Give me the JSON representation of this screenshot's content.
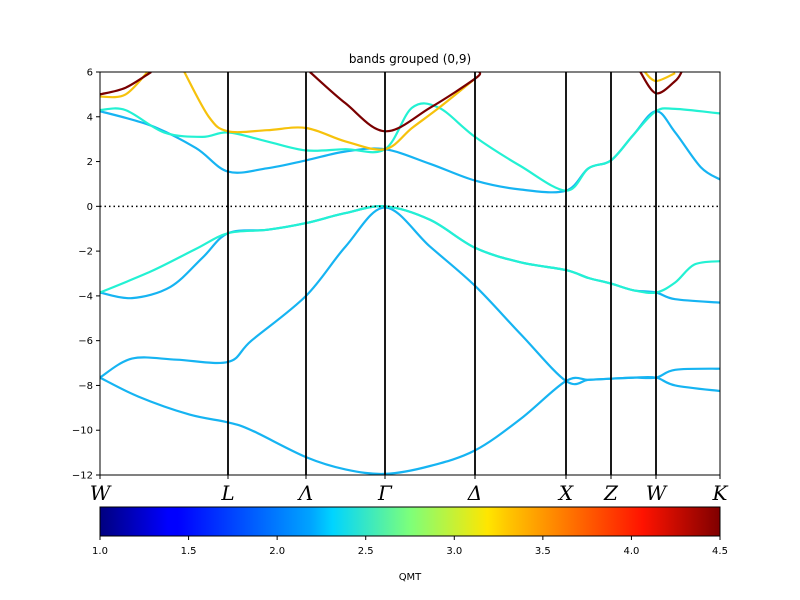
{
  "chart_data": {
    "type": "line",
    "title": "bands grouped (0,9)",
    "xlabel": "",
    "ylabel": "",
    "ylim": [
      -12,
      6
    ],
    "yticks": [
      6,
      4,
      2,
      0,
      -2,
      -4,
      -6,
      -8,
      -10,
      -12
    ],
    "ytick_labels": [
      "6",
      "4",
      "2",
      "0",
      "−2",
      "−4",
      "−6",
      "−8",
      "−10",
      "−12"
    ],
    "x": [
      0,
      1,
      2,
      3,
      4,
      5,
      6,
      7,
      8
    ],
    "kpoint_labels": [
      "W",
      "L",
      "Λ",
      "Γ",
      "Δ",
      "X",
      "Z",
      "W",
      "K"
    ],
    "fermi_level": 0,
    "grid": false,
    "colorbar": {
      "label": "QMT",
      "range": [
        1.0,
        4.5
      ],
      "ticks": [
        1.0,
        1.5,
        2.0,
        2.5,
        3.0,
        3.5,
        4.0,
        4.5
      ],
      "tick_labels": [
        "1.0",
        "1.5",
        "2.0",
        "2.5",
        "3.0",
        "3.5",
        "4.0",
        "4.5"
      ],
      "colormap": "jet"
    },
    "series": [
      {
        "qmt": 2.15,
        "color": "#16b4f2",
        "points": [
          [
            0,
            -7.65
          ],
          [
            0.25,
            -6.8
          ],
          [
            0.6,
            -6.85
          ],
          [
            1,
            -6.95
          ],
          [
            1.3,
            -6
          ],
          [
            2,
            -4
          ],
          [
            2.5,
            -1.8
          ],
          [
            3,
            -0.05
          ],
          [
            3.5,
            -1.8
          ],
          [
            4,
            -3.55
          ],
          [
            4.5,
            -5.7
          ],
          [
            5,
            -7.8
          ],
          [
            5.5,
            -7.75
          ],
          [
            6,
            -7.7
          ],
          [
            6.5,
            -7.65
          ],
          [
            7,
            -7.65
          ],
          [
            7.3,
            -7.3
          ],
          [
            8,
            -7.25
          ]
        ]
      },
      {
        "qmt": 2.15,
        "color": "#16b4f2",
        "points": [
          [
            0,
            -7.65
          ],
          [
            0.3,
            -8.5
          ],
          [
            0.7,
            -9.3
          ],
          [
            1,
            -9.65
          ],
          [
            1.3,
            -10
          ],
          [
            2,
            -11.2
          ],
          [
            2.5,
            -11.75
          ],
          [
            3,
            -11.95
          ],
          [
            3.5,
            -11.6
          ],
          [
            4,
            -10.9
          ],
          [
            4.5,
            -9.5
          ],
          [
            5,
            -7.8
          ],
          [
            5.5,
            -7.75
          ],
          [
            6,
            -7.7
          ],
          [
            6.5,
            -7.65
          ],
          [
            7,
            -7.65
          ],
          [
            7.3,
            -8
          ],
          [
            8,
            -8.25
          ]
        ]
      },
      {
        "qmt": 2.15,
        "color": "#16b4f2",
        "points": [
          [
            0,
            -3.85
          ],
          [
            0.25,
            -4.1
          ],
          [
            0.55,
            -3.6
          ],
          [
            0.8,
            -2.3
          ],
          [
            1,
            -1.2
          ],
          [
            1.5,
            -1.05
          ],
          [
            2,
            -0.75
          ],
          [
            2.5,
            -0.3
          ],
          [
            3,
            0
          ],
          [
            3.5,
            -0.6
          ],
          [
            4,
            -1.85
          ],
          [
            4.5,
            -2.5
          ],
          [
            5,
            -2.85
          ],
          [
            5.5,
            -3.2
          ],
          [
            6,
            -3.45
          ],
          [
            6.5,
            -3.75
          ],
          [
            7,
            -3.85
          ],
          [
            7.3,
            -4.15
          ],
          [
            8,
            -4.3
          ]
        ]
      },
      {
        "qmt": 2.45,
        "color": "#23f1d3",
        "points": [
          [
            0,
            -3.85
          ],
          [
            0.4,
            -2.9
          ],
          [
            0.75,
            -1.9
          ],
          [
            1,
            -1.2
          ],
          [
            1.5,
            -1.05
          ],
          [
            2,
            -0.75
          ],
          [
            2.5,
            -0.3
          ],
          [
            3,
            0
          ],
          [
            3.5,
            -0.6
          ],
          [
            4,
            -1.85
          ],
          [
            4.5,
            -2.5
          ],
          [
            5,
            -2.85
          ],
          [
            5.5,
            -3.2
          ],
          [
            6,
            -3.45
          ],
          [
            6.5,
            -3.75
          ],
          [
            7,
            -3.85
          ],
          [
            7.3,
            -3.4
          ],
          [
            7.6,
            -2.6
          ],
          [
            8,
            -2.45
          ]
        ]
      },
      {
        "qmt": 2.15,
        "color": "#16b4f2",
        "points": [
          [
            0,
            4.25
          ],
          [
            0.4,
            3.6
          ],
          [
            0.75,
            2.6
          ],
          [
            1,
            1.55
          ],
          [
            1.5,
            1.7
          ],
          [
            2,
            2.05
          ],
          [
            2.5,
            2.45
          ],
          [
            3,
            2.55
          ],
          [
            3.5,
            1.9
          ],
          [
            4,
            1.15
          ],
          [
            4.5,
            0.75
          ],
          [
            5,
            0.7
          ],
          [
            5.5,
            1.7
          ],
          [
            6,
            2.05
          ],
          [
            6.5,
            3.2
          ],
          [
            7,
            4.25
          ],
          [
            7.3,
            3.3
          ],
          [
            7.7,
            1.75
          ],
          [
            8,
            1.2
          ]
        ]
      },
      {
        "qmt": 2.45,
        "color": "#23f1d3",
        "points": [
          [
            0,
            4.3
          ],
          [
            0.2,
            4.3
          ],
          [
            0.5,
            3.3
          ],
          [
            0.8,
            3.1
          ],
          [
            1,
            3.3
          ],
          [
            1.5,
            2.9
          ],
          [
            2,
            2.5
          ],
          [
            2.5,
            2.55
          ],
          [
            3,
            2.55
          ],
          [
            3.3,
            4.4
          ],
          [
            3.6,
            4.4
          ],
          [
            4,
            3.1
          ],
          [
            4.5,
            1.8
          ],
          [
            5,
            0.7
          ],
          [
            5.5,
            1.7
          ],
          [
            6,
            2.05
          ],
          [
            6.5,
            3.2
          ],
          [
            7,
            4.25
          ],
          [
            7.3,
            4.35
          ],
          [
            8,
            4.15
          ]
        ]
      },
      {
        "qmt": 3.6,
        "color": "#f6c20c",
        "points": [
          [
            0,
            4.9
          ],
          [
            0.2,
            5.0
          ],
          [
            0.4,
            6.2
          ]
        ]
      },
      {
        "qmt": 3.6,
        "color": "#f6c20c",
        "points": [
          [
            0.65,
            6.1
          ],
          [
            0.85,
            4.0
          ],
          [
            1,
            3.35
          ],
          [
            1.5,
            3.4
          ],
          [
            2,
            3.5
          ],
          [
            2.5,
            2.9
          ],
          [
            3,
            2.55
          ],
          [
            3.3,
            3.5
          ],
          [
            3.6,
            4.4
          ],
          [
            4,
            5.7
          ]
        ]
      },
      {
        "qmt": 4.4,
        "color": "#7a0000",
        "points": [
          [
            0,
            5.0
          ],
          [
            0.2,
            5.3
          ],
          [
            0.4,
            6.0
          ]
        ]
      },
      {
        "qmt": 4.4,
        "color": "#7a0000",
        "points": [
          [
            2.05,
            6.0
          ],
          [
            2.5,
            4.6
          ],
          [
            3,
            3.35
          ],
          [
            3.5,
            4.4
          ],
          [
            4,
            5.7
          ],
          [
            4.05,
            6.0
          ]
        ]
      },
      {
        "qmt": 4.4,
        "color": "#7a0000",
        "points": [
          [
            6.65,
            6.0
          ],
          [
            7,
            5.05
          ],
          [
            7.3,
            5.6
          ],
          [
            7.4,
            6.0
          ]
        ]
      },
      {
        "qmt": 3.6,
        "color": "#f6c20c",
        "points": [
          [
            6.75,
            6.0
          ],
          [
            7,
            5.6
          ],
          [
            7.3,
            5.95
          ]
        ]
      }
    ]
  }
}
